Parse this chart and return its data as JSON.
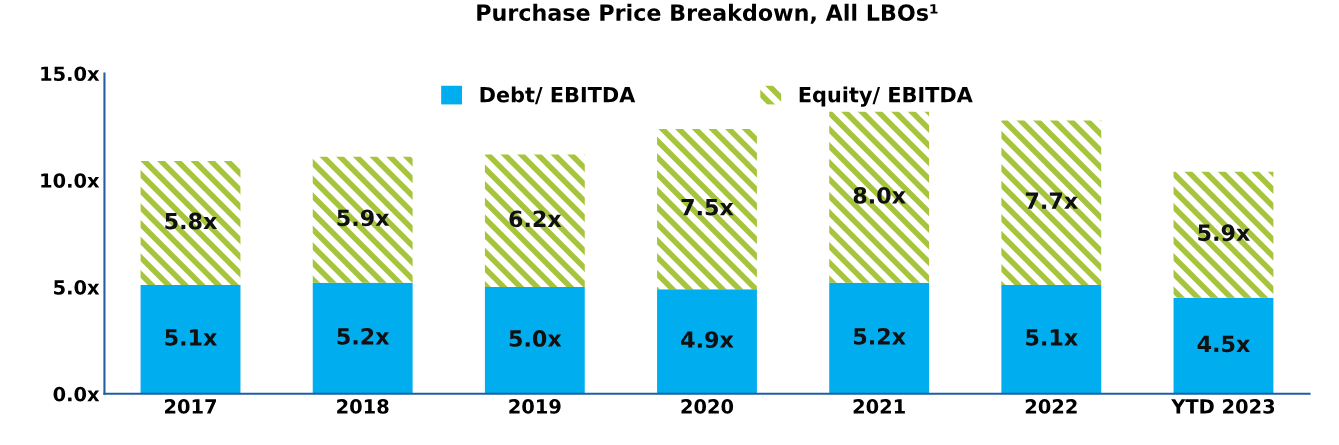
{
  "chart_data": {
    "type": "bar",
    "title": "Purchase Price Breakdown, All LBOs¹",
    "stacked": true,
    "categories": [
      "2017",
      "2018",
      "2019",
      "2020",
      "2021",
      "2022",
      "YTD 2023"
    ],
    "series": [
      {
        "name": "Debt/ EBITDA",
        "color": "#00adef",
        "values": [
          5.1,
          5.2,
          5.0,
          4.9,
          5.2,
          5.1,
          4.5
        ],
        "value_labels": [
          "5.1x",
          "5.2x",
          "5.0x",
          "4.9x",
          "5.2x",
          "5.1x",
          "4.5x"
        ]
      },
      {
        "name": "Equity/ EBITDA",
        "color": "#a6c43c",
        "values": [
          5.8,
          5.9,
          6.2,
          7.5,
          8.0,
          7.7,
          5.9
        ],
        "value_labels": [
          "5.8x",
          "5.9x",
          "6.2x",
          "7.5x",
          "8.0x",
          "7.7x",
          "5.9x"
        ]
      }
    ],
    "ylim": [
      0,
      15
    ],
    "yticks": [
      {
        "value": 0,
        "label": "0.0x"
      },
      {
        "value": 5,
        "label": "5.0x"
      },
      {
        "value": 10,
        "label": "10.0x"
      },
      {
        "value": 15,
        "label": "15.0x"
      }
    ],
    "grid": false,
    "legend": "top"
  }
}
